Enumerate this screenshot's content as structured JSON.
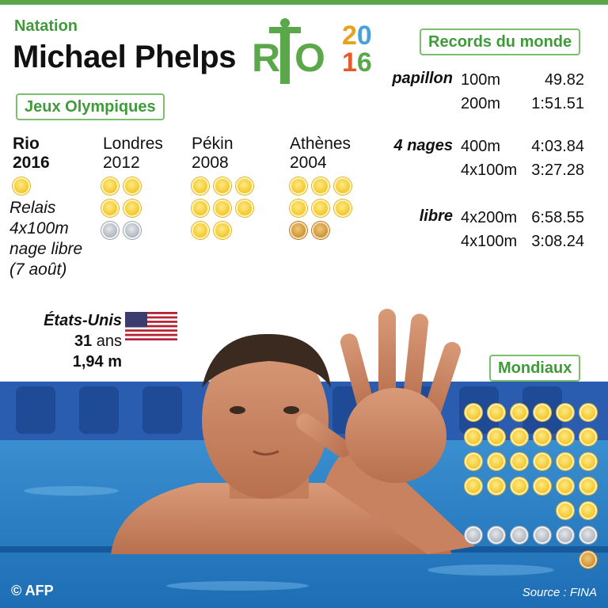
{
  "header": {
    "category": "Natation",
    "name": "Michael Phelps",
    "logo_text": "RIO",
    "year_top": "20",
    "year_bottom": "16"
  },
  "colors": {
    "accent_green": "#3f9b3a",
    "year_2": "#e6a21f",
    "year_0": "#4aa0d8",
    "year_1": "#e45a2a",
    "year_6": "#5aa84a"
  },
  "olympics": {
    "label": "Jeux Olympiques",
    "columns": [
      {
        "city": "Rio",
        "year": "2016",
        "gold": 1,
        "silver": 0,
        "bronze": 0
      },
      {
        "city": "Londres",
        "year": "2012",
        "gold": 4,
        "silver": 2,
        "bronze": 0
      },
      {
        "city": "Pékin",
        "year": "2008",
        "gold": 8,
        "silver": 0,
        "bronze": 0
      },
      {
        "city": "Athènes",
        "year": "2004",
        "gold": 6,
        "silver": 0,
        "bronze": 2
      }
    ],
    "rio_note_lines": [
      "Relais",
      "4x100m",
      "nage libre",
      "(7 août)"
    ]
  },
  "records": {
    "label": "Records du monde",
    "rows": [
      {
        "style": "papillon",
        "distance": "100m",
        "time": "49.82"
      },
      {
        "style": "",
        "distance": "200m",
        "time": "1:51.51"
      },
      {
        "style": "4 nages",
        "distance": "400m",
        "time": "4:03.84"
      },
      {
        "style": "",
        "distance": "4x100m",
        "time": "3:27.28"
      },
      {
        "style": "libre",
        "distance": "4x200m",
        "time": "6:58.55"
      },
      {
        "style": "",
        "distance": "4x100m",
        "time": "3:08.24"
      }
    ]
  },
  "bio": {
    "country": "États-Unis",
    "flag_icon": "us-flag-icon",
    "age_value": "31",
    "age_unit": " ans",
    "height": "1,94 m"
  },
  "mondiaux": {
    "label": "Mondiaux",
    "gold": 26,
    "silver": 6,
    "bronze": 1
  },
  "footer": {
    "credit": "© AFP",
    "source": "Source : FINA"
  }
}
